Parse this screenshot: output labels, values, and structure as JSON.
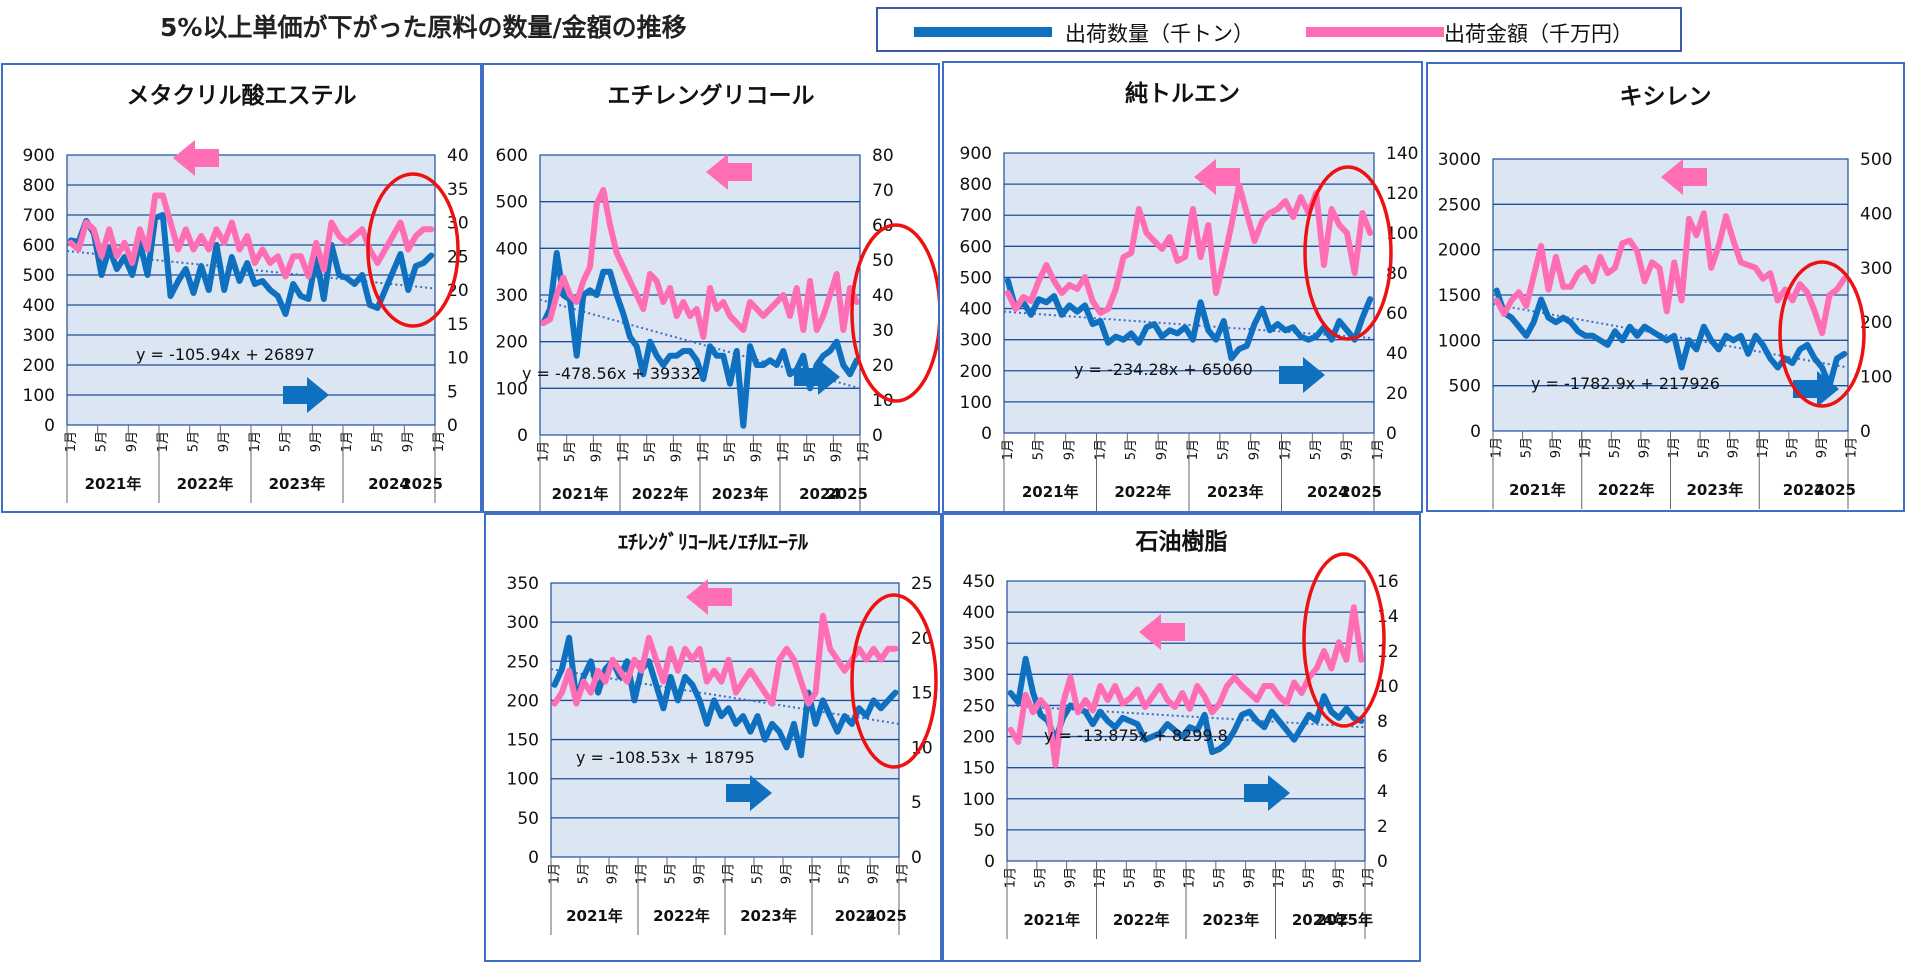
{
  "title": "5%以上単価が下がった原料の数量/金額の推移",
  "legend": {
    "qty_label": "出荷数量（千トン）",
    "amt_label": "出荷金額（千万円）",
    "qty_color": "#1070c0",
    "amt_color": "#ff6eb4"
  },
  "colors": {
    "plot_bg": "#dce6f2",
    "grid": "#1f4e9c",
    "trend": "#3b6cc7",
    "circle": "#ee1111",
    "border": "#3e6fc4"
  },
  "chart_data": [
    {
      "type": "line",
      "title": "メタクリル酸エステル",
      "left_axis": {
        "ylim": [
          0,
          900
        ],
        "ticks": [
          "0",
          "100",
          "200",
          "300",
          "400",
          "500",
          "600",
          "700",
          "800",
          "900"
        ]
      },
      "right_axis": {
        "ylim": [
          0,
          40
        ],
        "ticks": [
          "0",
          "5",
          "10",
          "15",
          "20",
          "25",
          "30",
          "35",
          "40"
        ]
      },
      "month_ticks": [
        "1月",
        "5月",
        "9月",
        "1月",
        "5月",
        "9月",
        "1月",
        "5月",
        "9月",
        "1月",
        "5月",
        "9月",
        "1月"
      ],
      "year_labels": [
        "2021年",
        "2022年",
        "2023年",
        "2024",
        "2025"
      ],
      "trendline": {
        "label": "y = -105.94x + 26897",
        "start": 580,
        "end": 455
      },
      "series": [
        {
          "name": "出荷数量（千トン）",
          "axis": "left",
          "values": [
            615,
            610,
            680,
            640,
            500,
            590,
            520,
            560,
            500,
            610,
            500,
            690,
            700,
            430,
            480,
            520,
            440,
            530,
            450,
            600,
            450,
            560,
            480,
            540,
            470,
            480,
            450,
            430,
            370,
            470,
            430,
            420,
            560,
            420,
            600,
            500,
            490,
            470,
            500,
            400,
            390,
            450,
            510,
            570,
            450,
            530,
            540,
            565
          ]
        },
        {
          "name": "出荷金額（千万円）",
          "axis": "right",
          "values": [
            27,
            26,
            30,
            29,
            25,
            29,
            25,
            27,
            24,
            29,
            26,
            34,
            34,
            30,
            26,
            29,
            26,
            28,
            26,
            29,
            27,
            30,
            26,
            28,
            24,
            26,
            24,
            25,
            22,
            25,
            25,
            22,
            27,
            23,
            30,
            28,
            27,
            28,
            29,
            26,
            24,
            26,
            28,
            30,
            26,
            28,
            29,
            29
          ]
        }
      ]
    },
    {
      "type": "line",
      "title": "エチレングリコール",
      "left_axis": {
        "ylim": [
          0,
          600
        ],
        "ticks": [
          "0",
          "100",
          "200",
          "300",
          "400",
          "500",
          "600"
        ]
      },
      "right_axis": {
        "ylim": [
          0,
          80
        ],
        "ticks": [
          "0",
          "10",
          "20",
          "30",
          "40",
          "50",
          "60",
          "70",
          "80"
        ]
      },
      "month_ticks": [
        "1月",
        "5月",
        "9月",
        "1月",
        "5月",
        "9月",
        "1月",
        "5月",
        "9月",
        "1月",
        "5月",
        "9月",
        "1月"
      ],
      "year_labels": [
        "2021年",
        "2022年",
        "2023年",
        "2024",
        "2025"
      ],
      "trendline": {
        "label": "y = -478.56x + 39332",
        "start": 290,
        "end": 100
      },
      "series": [
        {
          "name": "出荷数量（千トン）",
          "axis": "left",
          "values": [
            240,
            270,
            390,
            300,
            290,
            170,
            300,
            310,
            300,
            350,
            350,
            300,
            260,
            210,
            190,
            130,
            200,
            170,
            150,
            170,
            170,
            180,
            180,
            160,
            120,
            190,
            170,
            170,
            110,
            180,
            20,
            190,
            150,
            150,
            160,
            150,
            180,
            130,
            140,
            170,
            100,
            150,
            170,
            180,
            200,
            150,
            130,
            160
          ]
        },
        {
          "name": "出荷金額（千万円）",
          "axis": "right",
          "values": [
            32,
            33,
            40,
            45,
            40,
            38,
            44,
            48,
            66,
            70,
            60,
            52,
            48,
            44,
            40,
            36,
            46,
            44,
            38,
            42,
            34,
            38,
            34,
            36,
            28,
            42,
            36,
            38,
            34,
            32,
            30,
            38,
            36,
            34,
            36,
            38,
            40,
            34,
            42,
            30,
            44,
            30,
            34,
            40,
            46,
            30,
            42,
            38
          ]
        }
      ]
    },
    {
      "type": "line",
      "title": "純トルエン",
      "left_axis": {
        "ylim": [
          0,
          900
        ],
        "ticks": [
          "0",
          "100",
          "200",
          "300",
          "400",
          "500",
          "600",
          "700",
          "800",
          "900"
        ]
      },
      "right_axis": {
        "ylim": [
          0,
          140
        ],
        "ticks": [
          "0",
          "20",
          "40",
          "60",
          "80",
          "100",
          "120",
          "140"
        ]
      },
      "month_ticks": [
        "1月",
        "5月",
        "9月",
        "1月",
        "5月",
        "9月",
        "1月",
        "5月",
        "9月",
        "1月",
        "5月",
        "9月",
        "1月"
      ],
      "year_labels": [
        "2021年",
        "2022年",
        "2023年",
        "2024",
        "2025"
      ],
      "trendline": {
        "label": "y = -234.28x + 65060",
        "start": 390,
        "end": 305
      },
      "series": [
        {
          "name": "出荷数量（千トン）",
          "axis": "left",
          "values": [
            490,
            400,
            420,
            380,
            430,
            420,
            440,
            380,
            410,
            390,
            410,
            350,
            360,
            290,
            310,
            300,
            320,
            290,
            340,
            350,
            310,
            330,
            320,
            340,
            300,
            420,
            330,
            300,
            360,
            240,
            270,
            280,
            350,
            400,
            330,
            350,
            330,
            340,
            310,
            300,
            310,
            340,
            300,
            360,
            330,
            300,
            370,
            430
          ]
        },
        {
          "name": "出荷金額（千万円）",
          "axis": "right",
          "values": [
            70,
            62,
            68,
            66,
            76,
            84,
            76,
            70,
            74,
            72,
            78,
            66,
            60,
            62,
            72,
            88,
            90,
            112,
            100,
            96,
            92,
            98,
            86,
            88,
            112,
            88,
            104,
            70,
            86,
            104,
            124,
            110,
            96,
            106,
            110,
            112,
            116,
            108,
            118,
            110,
            120,
            84,
            112,
            104,
            100,
            80,
            110,
            100
          ]
        }
      ]
    },
    {
      "type": "line",
      "title": "キシレン",
      "left_axis": {
        "ylim": [
          0,
          3000
        ],
        "ticks": [
          "0",
          "500",
          "1000",
          "1500",
          "2000",
          "2500",
          "3000"
        ]
      },
      "right_axis": {
        "ylim": [
          0,
          500
        ],
        "ticks": [
          "0",
          "100",
          "200",
          "300",
          "400",
          "500"
        ]
      },
      "month_ticks": [
        "1月",
        "5月",
        "9月",
        "1月",
        "5月",
        "9月",
        "1月",
        "5月",
        "9月",
        "1月",
        "5月",
        "9月",
        "1月"
      ],
      "year_labels": [
        "2021年",
        "2022年",
        "2023年",
        "2024",
        "2025"
      ],
      "trendline": {
        "label": "y = -1782.9x + 217926",
        "start": 1400,
        "end": 700
      },
      "series": [
        {
          "name": "出荷数量（千トン）",
          "axis": "left",
          "values": [
            1550,
            1300,
            1250,
            1150,
            1050,
            1200,
            1450,
            1250,
            1200,
            1250,
            1200,
            1100,
            1050,
            1050,
            1000,
            950,
            1100,
            1000,
            1150,
            1050,
            1150,
            1100,
            1050,
            1000,
            1050,
            700,
            1000,
            900,
            1150,
            1000,
            900,
            1050,
            1000,
            1050,
            850,
            1050,
            950,
            800,
            700,
            800,
            750,
            900,
            950,
            800,
            700,
            500,
            800,
            850
          ]
        },
        {
          "name": "出荷金額（千万円）",
          "axis": "right",
          "values": [
            240,
            215,
            240,
            255,
            230,
            285,
            340,
            260,
            320,
            265,
            265,
            290,
            300,
            275,
            320,
            290,
            300,
            345,
            350,
            330,
            275,
            310,
            300,
            220,
            310,
            240,
            390,
            360,
            400,
            300,
            340,
            395,
            350,
            310,
            305,
            300,
            280,
            290,
            240,
            260,
            240,
            270,
            255,
            220,
            180,
            250,
            260,
            280
          ]
        }
      ]
    },
    {
      "type": "line",
      "title": "ｴﾁﾚﾝｸﾞﾘｺｰﾙﾓﾉｴﾁﾙｴｰﾃﾙ",
      "left_axis": {
        "ylim": [
          0,
          350
        ],
        "ticks": [
          "0",
          "50",
          "100",
          "150",
          "200",
          "250",
          "300",
          "350"
        ]
      },
      "right_axis": {
        "ylim": [
          0,
          25
        ],
        "ticks": [
          "0",
          "5",
          "10",
          "15",
          "20",
          "25"
        ]
      },
      "month_ticks": [
        "1月",
        "5月",
        "9月",
        "1月",
        "5月",
        "9月",
        "1月",
        "5月",
        "9月",
        "1月",
        "5月",
        "9月",
        "1月"
      ],
      "year_labels": [
        "2021年",
        "2022年",
        "2023年",
        "2024",
        "2025"
      ],
      "trendline": {
        "label": "y = -108.53x + 18795",
        "start": 240,
        "end": 170
      },
      "series": [
        {
          "name": "出荷数量（千トン）",
          "axis": "left",
          "values": [
            220,
            240,
            280,
            200,
            230,
            250,
            210,
            240,
            250,
            230,
            250,
            200,
            240,
            250,
            220,
            190,
            230,
            200,
            230,
            220,
            200,
            170,
            200,
            180,
            190,
            170,
            180,
            160,
            180,
            150,
            170,
            160,
            140,
            170,
            130,
            210,
            170,
            200,
            180,
            160,
            180,
            170,
            190,
            180,
            200,
            190,
            200,
            210
          ]
        },
        {
          "name": "出荷金額（千万円）",
          "axis": "right",
          "values": [
            14,
            15,
            17,
            14,
            16,
            15,
            17,
            16,
            18,
            17,
            16,
            18,
            17,
            20,
            18,
            16,
            19,
            17,
            19,
            18,
            19,
            16,
            17,
            16,
            18,
            15,
            16,
            17,
            16,
            15,
            14,
            18,
            19,
            18,
            16,
            14,
            15,
            22,
            19,
            18,
            17,
            18,
            19,
            18,
            19,
            18,
            19,
            19
          ]
        }
      ]
    },
    {
      "type": "line",
      "title": "石油樹脂",
      "left_axis": {
        "ylim": [
          0,
          450
        ],
        "ticks": [
          "0",
          "50",
          "100",
          "150",
          "200",
          "250",
          "300",
          "350",
          "400",
          "450"
        ]
      },
      "right_axis": {
        "ylim": [
          0,
          16
        ],
        "ticks": [
          "0",
          "2",
          "4",
          "6",
          "8",
          "10",
          "12",
          "14",
          "16"
        ]
      },
      "month_ticks": [
        "1月",
        "5月",
        "9月",
        "1月",
        "5月",
        "9月",
        "1月",
        "5月",
        "9月",
        "1月",
        "5月",
        "9月",
        "1月"
      ],
      "year_labels": [
        "2021年",
        "2022年",
        "2023年",
        "2024年",
        "2025年"
      ],
      "trendline": {
        "label": "y = -13.875x + 8299.8",
        "start": 250,
        "end": 215
      },
      "series": [
        {
          "name": "出荷数量（千トン）",
          "axis": "left",
          "values": [
            270,
            255,
            325,
            270,
            235,
            225,
            195,
            230,
            250,
            245,
            240,
            220,
            240,
            225,
            215,
            230,
            225,
            220,
            195,
            200,
            205,
            220,
            210,
            200,
            215,
            210,
            235,
            175,
            180,
            190,
            210,
            235,
            240,
            225,
            215,
            240,
            225,
            210,
            195,
            215,
            235,
            225,
            265,
            240,
            230,
            245,
            230,
            225
          ]
        },
        {
          "name": "出荷金額（千万円）",
          "axis": "right",
          "values": [
            7.5,
            6.8,
            9.5,
            8.5,
            9.2,
            8.7,
            5.5,
            9.0,
            10.5,
            8.5,
            9.2,
            8.6,
            10,
            9.2,
            10,
            9.0,
            9.3,
            9.8,
            8.8,
            9.4,
            10,
            9.2,
            8.8,
            9.6,
            8.7,
            10,
            9.4,
            8.5,
            9.0,
            10,
            10.5,
            10,
            9.6,
            9.2,
            10,
            10,
            9.4,
            9.0,
            10.2,
            9.6,
            10.5,
            11,
            12,
            11,
            12.5,
            11.5,
            14.5,
            11.5
          ]
        }
      ]
    }
  ]
}
